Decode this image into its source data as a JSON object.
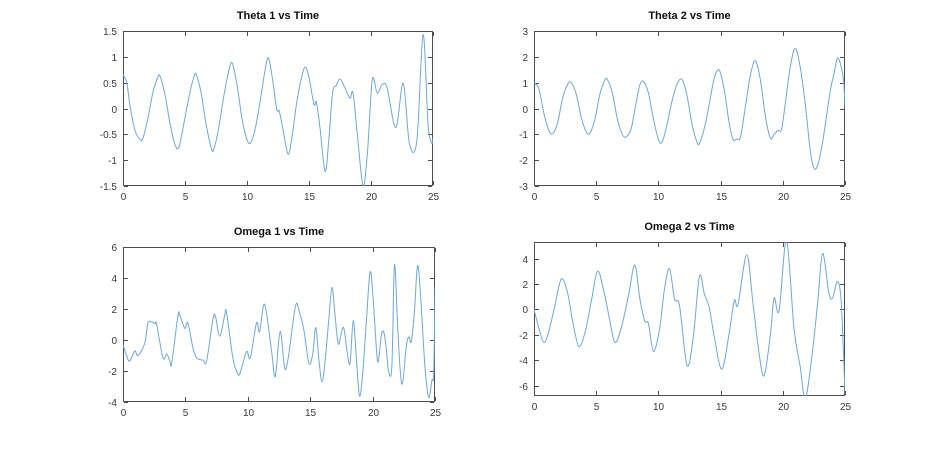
{
  "window": {
    "background": "#ffffff"
  },
  "styles": {
    "line_color": "#6fa8d8",
    "axis_color": "#4d4d4d",
    "tick_label_color": "#383838",
    "title_color": "#0f0f0f"
  },
  "chart_data": [
    {
      "id": "theta1",
      "type": "line",
      "title": "Theta 1 vs Time",
      "xlabel": "",
      "ylabel": "",
      "grid": false,
      "legend": null,
      "xlim": [
        0,
        25
      ],
      "ylim": [
        -1.5,
        1.5
      ],
      "xticks": [
        0,
        5,
        10,
        15,
        20,
        25
      ],
      "yticks": [
        -1.5,
        -1,
        -0.5,
        0,
        0.5,
        1,
        1.5
      ],
      "x": [
        0,
        0.3,
        0.6,
        1.0,
        1.4,
        1.6,
        2.0,
        2.4,
        2.8,
        3.0,
        3.4,
        3.8,
        4.2,
        4.5,
        4.9,
        5.3,
        5.7,
        5.9,
        6.3,
        6.7,
        7.1,
        7.3,
        7.7,
        8.1,
        8.5,
        8.8,
        9.2,
        9.6,
        10.0,
        10.3,
        10.7,
        11.1,
        11.5,
        11.75,
        12.1,
        12.4,
        12.6,
        12.9,
        13.3,
        13.6,
        14.0,
        14.4,
        14.7,
        15.0,
        15.4,
        15.6,
        15.9,
        16.3,
        16.6,
        16.9,
        17.2,
        17.5,
        17.9,
        18.3,
        18.55,
        18.9,
        19.35,
        19.7,
        20.1,
        20.5,
        20.9,
        21.3,
        22.0,
        22.6,
        23.1,
        23.7,
        24.2,
        24.6,
        24.9,
        25.0
      ],
      "y": [
        0.65,
        0.5,
        0.0,
        -0.45,
        -0.6,
        -0.58,
        -0.2,
        0.3,
        0.6,
        0.62,
        0.25,
        -0.3,
        -0.7,
        -0.75,
        -0.3,
        0.2,
        0.6,
        0.66,
        0.3,
        -0.3,
        -0.75,
        -0.8,
        -0.4,
        0.2,
        0.7,
        0.88,
        0.45,
        -0.2,
        -0.6,
        -0.66,
        -0.35,
        0.2,
        0.8,
        0.97,
        0.5,
        -0.02,
        -0.05,
        -0.4,
        -0.88,
        -0.6,
        0.1,
        0.6,
        0.8,
        0.6,
        0.08,
        0.12,
        -0.4,
        -1.22,
        -0.6,
        0.3,
        0.45,
        0.57,
        0.4,
        0.2,
        0.3,
        -0.5,
        -1.48,
        -0.9,
        0.55,
        0.3,
        0.46,
        0.4,
        -0.37,
        0.49,
        -0.68,
        -0.62,
        1.43,
        -0.3,
        -0.67,
        -0.58
      ]
    },
    {
      "id": "theta2",
      "type": "line",
      "title": "Theta 2 vs Time",
      "xlabel": "",
      "ylabel": "",
      "grid": false,
      "legend": null,
      "xlim": [
        0,
        25
      ],
      "ylim": [
        -3,
        3
      ],
      "xticks": [
        0,
        5,
        10,
        15,
        20,
        25
      ],
      "yticks": [
        -3,
        -2,
        -1,
        0,
        1,
        2,
        3
      ],
      "x": [
        0,
        0.4,
        0.8,
        1.2,
        1.5,
        1.9,
        2.3,
        2.7,
        3.0,
        3.4,
        3.8,
        4.2,
        4.5,
        4.9,
        5.3,
        5.7,
        5.9,
        6.3,
        6.7,
        7.1,
        7.4,
        7.8,
        8.2,
        8.5,
        8.8,
        9.2,
        9.6,
        10.0,
        10.3,
        10.7,
        11.1,
        11.5,
        11.9,
        12.3,
        12.7,
        13.1,
        13.3,
        13.7,
        14.1,
        14.5,
        14.9,
        15.3,
        15.7,
        16.0,
        16.3,
        16.6,
        17.0,
        17.4,
        17.8,
        18.2,
        18.6,
        19.0,
        19.3,
        19.6,
        19.9,
        20.2,
        20.6,
        21.0,
        21.4,
        21.8,
        22.2,
        22.5,
        22.8,
        23.2,
        23.6,
        23.9,
        24.1,
        24.4,
        24.7,
        24.9,
        25.0
      ],
      "y": [
        1.0,
        0.75,
        -0.2,
        -0.85,
        -0.97,
        -0.55,
        0.4,
        0.93,
        1.0,
        0.55,
        -0.35,
        -0.9,
        -0.95,
        -0.4,
        0.55,
        1.1,
        1.12,
        0.6,
        -0.4,
        -1.0,
        -1.1,
        -0.8,
        0.2,
        0.9,
        1.05,
        0.6,
        -0.4,
        -1.2,
        -1.3,
        -0.6,
        0.3,
        0.95,
        1.12,
        0.5,
        -0.6,
        -1.3,
        -1.35,
        -0.75,
        0.2,
        1.2,
        1.48,
        0.7,
        -0.6,
        -1.2,
        -1.18,
        -1.1,
        0.1,
        1.3,
        1.85,
        1.1,
        -0.3,
        -1.15,
        -1.0,
        -0.85,
        -0.8,
        0.2,
        1.6,
        2.33,
        1.6,
        0.2,
        -1.6,
        -2.3,
        -2.2,
        -1.3,
        0.0,
        0.9,
        1.3,
        1.95,
        1.6,
        1.0,
        0.05
      ]
    },
    {
      "id": "omega1",
      "type": "line",
      "title": "Omega 1 vs Time",
      "xlabel": "",
      "ylabel": "",
      "grid": false,
      "legend": null,
      "xlim": [
        0,
        25
      ],
      "ylim": [
        -4,
        6
      ],
      "xticks": [
        0,
        5,
        10,
        15,
        20,
        25
      ],
      "yticks": [
        -4,
        -2,
        0,
        2,
        4,
        6
      ],
      "x": [
        0,
        0.35,
        0.55,
        0.95,
        1.2,
        1.75,
        2.0,
        2.3,
        2.55,
        2.7,
        3.2,
        3.5,
        3.75,
        3.9,
        4.4,
        4.55,
        4.95,
        5.2,
        5.6,
        5.9,
        6.4,
        6.7,
        7.2,
        7.4,
        7.75,
        8.15,
        8.3,
        8.8,
        9.1,
        9.35,
        9.9,
        10.2,
        10.7,
        10.95,
        11.35,
        11.9,
        12.2,
        12.6,
        13.05,
        13.8,
        14.1,
        14.5,
        14.9,
        15.2,
        15.45,
        15.7,
        15.95,
        16.2,
        16.5,
        16.75,
        17.0,
        17.25,
        17.5,
        17.7,
        18.0,
        18.2,
        18.45,
        18.7,
        18.95,
        19.2,
        19.5,
        19.8,
        20.05,
        20.3,
        20.45,
        20.7,
        20.9,
        21.1,
        21.3,
        21.55,
        21.75,
        22.0,
        22.2,
        22.4,
        22.7,
        22.9,
        23.1,
        23.35,
        23.6,
        23.85,
        24.2,
        24.5,
        24.75,
        24.9,
        25.0
      ],
      "y": [
        -0.3,
        -1.15,
        -1.35,
        -0.7,
        -1.0,
        -0.2,
        1.1,
        1.15,
        1.05,
        1.0,
        -1.15,
        -0.9,
        -1.35,
        -1.5,
        1.55,
        1.6,
        0.75,
        1.1,
        -0.5,
        -1.15,
        -1.3,
        -1.35,
        1.3,
        1.55,
        0.25,
        1.6,
        1.75,
        -1.15,
        -2.0,
        -2.2,
        -0.75,
        -1.15,
        1.1,
        0.55,
        2.3,
        -0.7,
        -2.35,
        0.55,
        -1.9,
        2.1,
        1.9,
        0.6,
        -1.5,
        -0.9,
        0.8,
        -1.3,
        -2.7,
        -1.3,
        1.4,
        3.4,
        1.5,
        -0.25,
        0.45,
        0.75,
        -1.0,
        -1.45,
        1.25,
        -1.2,
        -3.6,
        -2.2,
        1.2,
        4.4,
        2.6,
        -0.5,
        -1.4,
        0.3,
        0.5,
        -0.6,
        -2.1,
        -1.6,
        4.85,
        1.0,
        -1.8,
        -2.8,
        -0.4,
        0.2,
        -0.1,
        1.8,
        4.8,
        2.8,
        -1.8,
        -3.7,
        -2.6,
        -2.1,
        3.4
      ]
    },
    {
      "id": "omega2",
      "type": "line",
      "title": "Omega 2 vs Time",
      "xlabel": "",
      "ylabel": "",
      "grid": false,
      "legend": null,
      "xlim": [
        0,
        25
      ],
      "ylim": [
        -6.8,
        5.3
      ],
      "xticks": [
        0,
        5,
        10,
        15,
        20,
        25
      ],
      "yticks": [
        -6,
        -4,
        -2,
        0,
        2,
        4
      ],
      "x": [
        0,
        0.4,
        0.8,
        1.2,
        1.7,
        2.2,
        2.7,
        3.1,
        3.6,
        4.1,
        4.6,
        5.1,
        5.6,
        6.1,
        6.5,
        7.0,
        7.6,
        8.1,
        8.5,
        8.9,
        9.2,
        9.6,
        10.1,
        10.5,
        10.9,
        11.3,
        11.7,
        12.3,
        12.8,
        13.3,
        13.7,
        14.1,
        14.5,
        15.1,
        15.7,
        16.1,
        16.4,
        17.1,
        17.6,
        18.1,
        18.5,
        19.0,
        19.3,
        19.7,
        20.3,
        20.9,
        21.4,
        21.8,
        22.3,
        22.8,
        23.2,
        23.7,
        24.0,
        24.4,
        24.7,
        25.0
      ],
      "y": [
        0.0,
        -1.5,
        -2.6,
        -1.7,
        0.4,
        2.4,
        1.3,
        -0.9,
        -2.9,
        -1.8,
        0.6,
        3.0,
        1.5,
        -0.9,
        -2.6,
        -1.5,
        1.1,
        3.5,
        0.9,
        -0.9,
        -1.1,
        -3.3,
        -1.5,
        1.7,
        3.2,
        0.8,
        0.3,
        -4.4,
        -2.2,
        2.6,
        1.2,
        0.1,
        -2.2,
        -4.7,
        -1.8,
        0.7,
        0.4,
        4.3,
        0.5,
        -3.5,
        -5.2,
        -2.0,
        0.9,
        -0.1,
        5.4,
        -1.5,
        -4.5,
        -7.0,
        -4.0,
        0.5,
        4.4,
        1.3,
        0.9,
        2.2,
        0.5,
        -6.6
      ]
    }
  ]
}
